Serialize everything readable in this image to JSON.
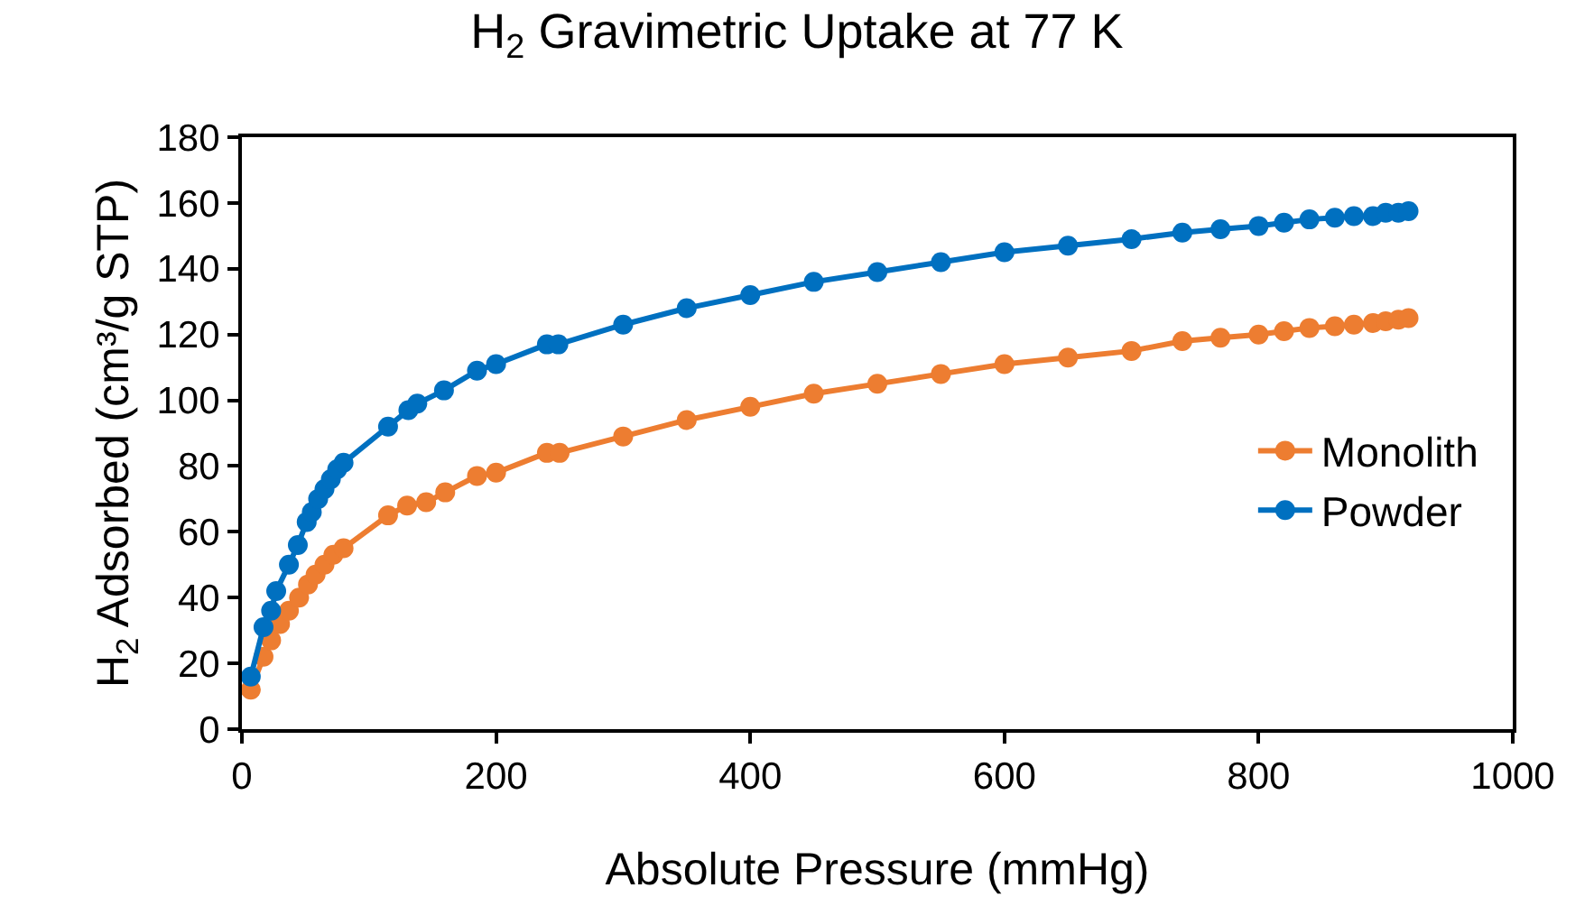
{
  "chart_data": {
    "type": "line",
    "title": "H$_{2}$ Gravimetric Uptake at 77 K",
    "xlabel": "Absolute Pressure (mmHg)",
    "ylabel": "H$_{2}$ Adsorbed (cm³/g STP)",
    "xlim": [
      0,
      1000
    ],
    "xticks": [
      0,
      200,
      400,
      600,
      800,
      1000
    ],
    "ylim": [
      0,
      180
    ],
    "yticks": [
      0,
      20,
      40,
      60,
      80,
      100,
      120,
      140,
      160,
      180
    ],
    "grid": false,
    "legend": "right",
    "marker": "circle",
    "line_style": "solid",
    "series": [
      {
        "name": "Monolith",
        "color": "#ed7d31",
        "x": [
          7,
          17,
          23,
          30,
          37,
          45,
          52,
          58,
          65,
          72,
          80,
          115,
          130,
          145,
          160,
          185,
          200,
          240,
          250,
          300,
          350,
          400,
          450,
          500,
          550,
          600,
          650,
          700,
          740,
          770,
          800,
          820,
          840,
          860,
          875,
          890,
          900,
          910,
          918
        ],
        "values": [
          12,
          22,
          27,
          32,
          36,
          40,
          44,
          47,
          50,
          53,
          55,
          65,
          68,
          69,
          72,
          77,
          78,
          84,
          84,
          89,
          94,
          98,
          102,
          105,
          108,
          111,
          113,
          115,
          118,
          119,
          120,
          121,
          122,
          122.5,
          123,
          123.5,
          124,
          124.5,
          125
        ]
      },
      {
        "name": "Powder",
        "color": "#0070c0",
        "x": [
          7,
          17,
          23,
          27,
          37,
          44,
          51,
          55,
          60,
          65,
          70,
          75,
          80,
          115,
          131,
          138,
          159,
          185,
          200,
          240,
          249,
          300,
          350,
          400,
          450,
          500,
          550,
          600,
          650,
          700,
          740,
          770,
          800,
          820,
          840,
          860,
          875,
          890,
          900,
          910,
          918
        ],
        "values": [
          16,
          31,
          36,
          42,
          50,
          56,
          63,
          66,
          70,
          73,
          76,
          79,
          81,
          92,
          97,
          99,
          103,
          109,
          111,
          117,
          117,
          123,
          128,
          132,
          136,
          139,
          142,
          145,
          147,
          149,
          151,
          152,
          153,
          154,
          155,
          155.5,
          156,
          156,
          157,
          157,
          157.5
        ]
      }
    ]
  }
}
